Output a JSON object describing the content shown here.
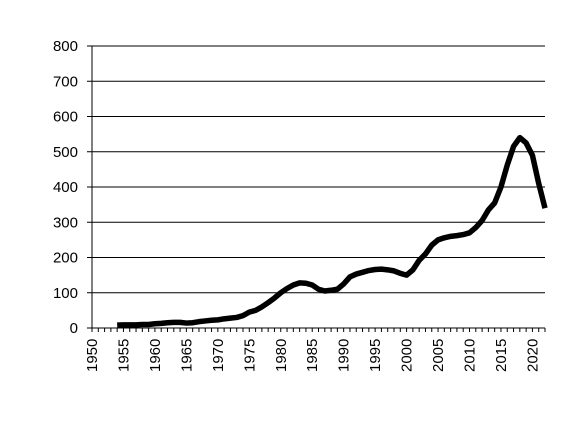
{
  "chart_data": {
    "type": "line",
    "title": "",
    "xlabel": "",
    "ylabel": "",
    "xlim": [
      1950,
      2022
    ],
    "ylim": [
      0,
      800
    ],
    "x_ticks": [
      "1950",
      "1955",
      "1960",
      "1965",
      "1970",
      "1975",
      "1980",
      "1985",
      "1990",
      "1995",
      "2000",
      "2005",
      "2010",
      "2015",
      "2020"
    ],
    "y_ticks": [
      "0",
      "100",
      "200",
      "300",
      "400",
      "500",
      "600",
      "700",
      "800"
    ],
    "grid": "horizontal",
    "legend": "none",
    "series": [
      {
        "color": "#000000",
        "points": [
          [
            1954,
            8
          ],
          [
            1955,
            9
          ],
          [
            1956,
            9
          ],
          [
            1957,
            9
          ],
          [
            1958,
            10
          ],
          [
            1959,
            10
          ],
          [
            1960,
            12
          ],
          [
            1961,
            13
          ],
          [
            1962,
            15
          ],
          [
            1963,
            16
          ],
          [
            1964,
            16
          ],
          [
            1965,
            14
          ],
          [
            1966,
            15
          ],
          [
            1967,
            18
          ],
          [
            1968,
            20
          ],
          [
            1969,
            22
          ],
          [
            1970,
            23
          ],
          [
            1971,
            26
          ],
          [
            1972,
            28
          ],
          [
            1973,
            30
          ],
          [
            1974,
            35
          ],
          [
            1975,
            45
          ],
          [
            1976,
            50
          ],
          [
            1977,
            60
          ],
          [
            1978,
            72
          ],
          [
            1979,
            85
          ],
          [
            1980,
            100
          ],
          [
            1981,
            112
          ],
          [
            1982,
            122
          ],
          [
            1983,
            128
          ],
          [
            1984,
            127
          ],
          [
            1985,
            122
          ],
          [
            1986,
            110
          ],
          [
            1987,
            105
          ],
          [
            1988,
            107
          ],
          [
            1989,
            110
          ],
          [
            1990,
            125
          ],
          [
            1991,
            145
          ],
          [
            1992,
            153
          ],
          [
            1993,
            158
          ],
          [
            1994,
            163
          ],
          [
            1995,
            166
          ],
          [
            1996,
            167
          ],
          [
            1997,
            165
          ],
          [
            1998,
            162
          ],
          [
            1999,
            155
          ],
          [
            2000,
            150
          ],
          [
            2001,
            165
          ],
          [
            2002,
            192
          ],
          [
            2003,
            210
          ],
          [
            2004,
            235
          ],
          [
            2005,
            250
          ],
          [
            2006,
            256
          ],
          [
            2007,
            260
          ],
          [
            2008,
            262
          ],
          [
            2009,
            265
          ],
          [
            2010,
            270
          ],
          [
            2011,
            285
          ],
          [
            2012,
            305
          ],
          [
            2013,
            335
          ],
          [
            2014,
            355
          ],
          [
            2015,
            400
          ],
          [
            2016,
            462
          ],
          [
            2017,
            515
          ],
          [
            2018,
            540
          ],
          [
            2019,
            525
          ],
          [
            2020,
            490
          ],
          [
            2021,
            410
          ],
          [
            2022,
            340
          ]
        ]
      }
    ]
  }
}
